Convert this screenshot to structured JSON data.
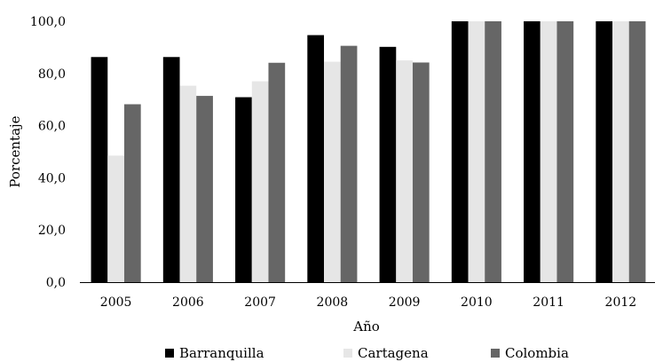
{
  "chart_data": {
    "type": "bar",
    "title": "",
    "xlabel": "Año",
    "ylabel": "Porcentaje",
    "ylim": [
      0,
      100
    ],
    "yticks": [
      "0,0",
      "20,0",
      "40,0",
      "60,0",
      "80,0",
      "100,0"
    ],
    "categories": [
      "2005",
      "2006",
      "2007",
      "2008",
      "2009",
      "2010",
      "2011",
      "2012"
    ],
    "series": [
      {
        "name": "Barranquilla",
        "color": "#000000",
        "values": [
          86.3,
          86.3,
          70.9,
          94.7,
          90.2,
          100,
          100,
          100
        ]
      },
      {
        "name": "Cartagena",
        "color": "#e6e6e6",
        "values": [
          48.5,
          75.3,
          77.0,
          84.5,
          85.0,
          100,
          100,
          100
        ]
      },
      {
        "name": "Colombia",
        "color": "#666666",
        "values": [
          68.2,
          71.4,
          84.1,
          90.6,
          84.2,
          100,
          100,
          100
        ]
      }
    ],
    "legend_position": "bottom",
    "grid": false
  }
}
